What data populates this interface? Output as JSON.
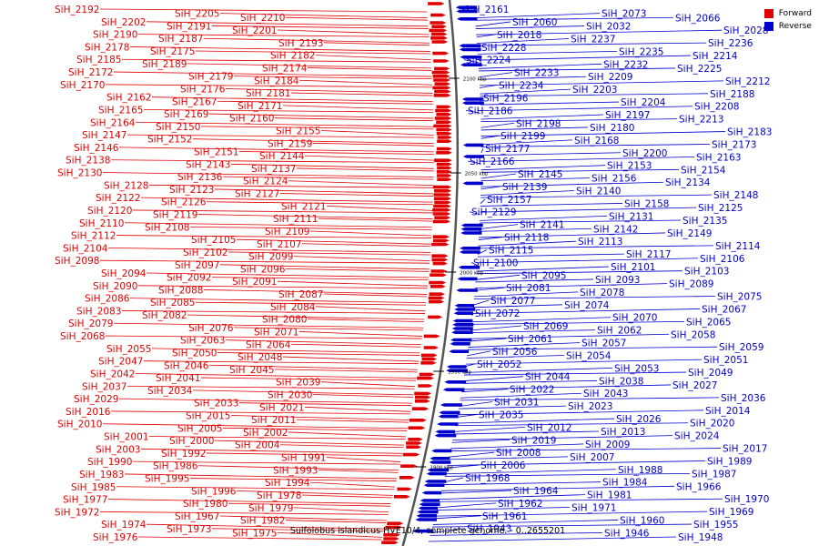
{
  "colors": {
    "forward": "#e00000",
    "reverse": "#0000cc"
  },
  "legend": [
    {
      "label": "Forward",
      "color": "#e00000"
    },
    {
      "label": "Reverse",
      "color": "#0000cc"
    }
  ],
  "caption": "Sulfolobus islandicus HVE10/4, complete genome. - 0..2655201",
  "scale_marks": [
    "2100 kbp",
    "2050 kbp",
    "2000 kbp",
    "1950 kbp",
    "1900 kbp"
  ],
  "forward_labels": [
    "SiH_2192",
    "SiH_2205",
    "SiH_2210",
    "SiH_2202",
    "SiH_2191",
    "SiH_2201",
    "SiH_2190",
    "SiH_2187",
    "SiH_2193",
    "SiH_2178",
    "SiH_2175",
    "SiH_2182",
    "SiH_2185",
    "SiH_2189",
    "SiH_2174",
    "SiH_2172",
    "SiH_2179",
    "SiH_2184",
    "SiH_2170",
    "SiH_2176",
    "SiH_2181",
    "SiH_2162",
    "SiH_2167",
    "SiH_2171",
    "SiH_2165",
    "SiH_2169",
    "SiH_2160",
    "SiH_2164",
    "SiH_2150",
    "SiH_2155",
    "SiH_2147",
    "SiH_2152",
    "SiH_2159",
    "SiH_2146",
    "SiH_2151",
    "SiH_2144",
    "SiH_2138",
    "SiH_2143",
    "SiH_2137",
    "SiH_2130",
    "SiH_2136",
    "SiH_2124",
    "SiH_2128",
    "SiH_2123",
    "SiH_2127",
    "SiH_2122",
    "SiH_2126",
    "SiH_2121",
    "SiH_2120",
    "SiH_2119",
    "SiH_2111",
    "SiH_2110",
    "SiH_2108",
    "SiH_2109",
    "SiH_2112",
    "SiH_2105",
    "SiH_2107",
    "SiH_2104",
    "SiH_2102",
    "SiH_2099",
    "SiH_2098",
    "SiH_2097",
    "SiH_2096",
    "SiH_2094",
    "SiH_2092",
    "SiH_2091",
    "SiH_2090",
    "SiH_2088",
    "SiH_2087",
    "SiH_2086",
    "SiH_2085",
    "SiH_2084",
    "SiH_2083",
    "SiH_2082",
    "SiH_2080",
    "SiH_2079",
    "SiH_2076",
    "SiH_2071",
    "SiH_2068",
    "SiH_2063",
    "SiH_2064",
    "SiH_2055",
    "SiH_2050",
    "SiH_2048",
    "SiH_2047",
    "SiH_2046",
    "SiH_2045",
    "SiH_2042",
    "SiH_2041",
    "SiH_2039",
    "SiH_2037",
    "SiH_2034",
    "SiH_2030",
    "SiH_2029",
    "SiH_2033",
    "SiH_2021",
    "SiH_2016",
    "SiH_2015",
    "SiH_2011",
    "SiH_2010",
    "SiH_2005",
    "SiH_2002",
    "SiH_2001",
    "SiH_2000",
    "SiH_2004",
    "SiH_2003",
    "SiH_1992",
    "SiH_1991",
    "SiH_1990",
    "SiH_1986",
    "SiH_1993",
    "SiH_1983",
    "SiH_1995",
    "SiH_1994",
    "SiH_1985",
    "SiH_1996",
    "SiH_1978",
    "SiH_1977",
    "SiH_1980",
    "SiH_1979",
    "SiH_1972",
    "SiH_1967",
    "SiH_1982",
    "SiH_1974",
    "SiH_1973",
    "SiH_1975",
    "SiH_1976"
  ],
  "reverse_labels": [
    "SiH_2161",
    "SiH_2073",
    "SiH_2066",
    "SiH_2060",
    "SiH_2032",
    "SiH_2028",
    "SiH_2018",
    "SiH_2237",
    "SiH_2236",
    "SiH_2228",
    "SiH_2235",
    "SiH_2214",
    "SiH_2224",
    "SiH_2232",
    "SiH_2225",
    "SiH_2233",
    "SiH_2209",
    "SiH_2212",
    "SiH_2234",
    "SiH_2203",
    "SiH_2188",
    "SiH_2196",
    "SiH_2204",
    "SiH_2208",
    "SiH_2186",
    "SiH_2197",
    "SiH_2213",
    "SiH_2198",
    "SiH_2180",
    "SiH_2183",
    "SiH_2199",
    "SiH_2168",
    "SiH_2173",
    "SiH_2177",
    "SiH_2200",
    "SiH_2163",
    "SiH_2166",
    "SiH_2153",
    "SiH_2154",
    "SiH_2145",
    "SiH_2156",
    "SiH_2134",
    "SiH_2139",
    "SiH_2140",
    "SiH_2148",
    "SiH_2157",
    "SiH_2158",
    "SiH_2125",
    "SiH_2129",
    "SiH_2131",
    "SiH_2135",
    "SiH_2141",
    "SiH_2142",
    "SiH_2149",
    "SiH_2118",
    "SiH_2113",
    "SiH_2114",
    "SiH_2115",
    "SiH_2117",
    "SiH_2106",
    "SiH_2100",
    "SiH_2101",
    "SiH_2103",
    "SiH_2095",
    "SiH_2093",
    "SiH_2089",
    "SiH_2081",
    "SiH_2078",
    "SiH_2075",
    "SiH_2077",
    "SiH_2074",
    "SiH_2067",
    "SiH_2072",
    "SiH_2070",
    "SiH_2065",
    "SiH_2069",
    "SiH_2062",
    "SiH_2058",
    "SiH_2061",
    "SiH_2057",
    "SiH_2059",
    "SiH_2056",
    "SiH_2054",
    "SiH_2051",
    "SiH_2052",
    "SiH_2053",
    "SiH_2049",
    "SiH_2044",
    "SiH_2038",
    "SiH_2027",
    "SiH_2022",
    "SiH_2043",
    "SiH_2036",
    "SiH_2031",
    "SiH_2023",
    "SiH_2014",
    "SiH_2035",
    "SiH_2026",
    "SiH_2020",
    "SiH_2012",
    "SiH_2013",
    "SiH_2024",
    "SiH_2019",
    "SiH_2009",
    "SiH_2017",
    "SiH_2008",
    "SiH_2007",
    "SiH_1989",
    "SiH_2006",
    "SiH_1988",
    "SiH_1987",
    "SiH_1968",
    "SiH_1984",
    "SiH_1966",
    "SiH_1964",
    "SiH_1981",
    "SiH_1970",
    "SiH_1962",
    "SiH_1971",
    "SiH_1969",
    "SiH_1961",
    "SiH_1960",
    "SiH_1955",
    "SiH_1943",
    "SiH_1946",
    "SiH_1948"
  ]
}
